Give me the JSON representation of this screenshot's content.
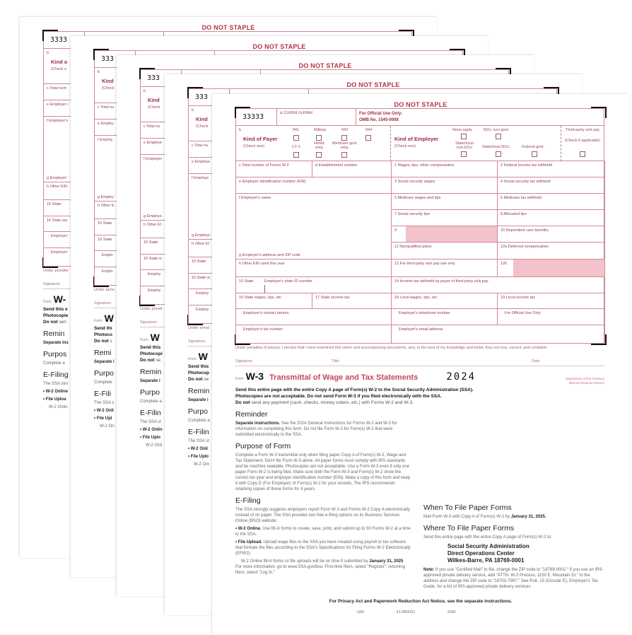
{
  "form": {
    "do_not_staple": "DO NOT STAPLE",
    "control_code": "33333",
    "control_label": "a Control number",
    "official_use": "For Official Use Only:",
    "omb": "OMB No. 1545-0008",
    "b": "b",
    "kind_of_payer": "Kind of Payer",
    "check_one": "(Check one)",
    "payer_options": [
      "941",
      "Military",
      "943",
      "944",
      "CT-1",
      "Hshld. emp.",
      "Medicare govt. emp."
    ],
    "kind_of_employer": "Kind of Employer",
    "employer_options": [
      "None apply",
      "501c non-govt.",
      "State/local non-501c",
      "State/local 501c",
      "Federal govt."
    ],
    "third_party": "Third-party sick pay",
    "check_if": "(Check if applicable)",
    "boxes": {
      "c": "c Total number of Forms W-2",
      "d": "d Establishment number",
      "b1": "1 Wages, tips, other compensation",
      "b2": "2 Federal income tax withheld",
      "e": "e Employer identification number (EIN)",
      "b3": "3 Social security wages",
      "b4": "4 Social security tax withheld",
      "f": "f Employer's name",
      "b5": "5 Medicare wages and tips",
      "b6": "6 Medicare tax withheld",
      "b7": "7 Social security tips",
      "b8": "8 Allocated tips",
      "b9": "9",
      "b10": "10 Dependent care benefits",
      "b11": "11 Nonqualified plans",
      "b12a": "12a Deferred compensation",
      "g": "g Employer's address and ZIP code",
      "h": "h Other EIN used this year",
      "b13": "13 For third-party sick pay use only",
      "b12b": "12b",
      "b15": "15 State",
      "state_id": "Employer's state ID number",
      "b14": "14 Income tax withheld by payer of third-party sick pay",
      "b16": "16 State wages, tips, etc.",
      "b17": "17 State income tax",
      "b18": "18 Local wages, tips, etc.",
      "b19": "19 Local income tax",
      "contact": "Employer's contact person",
      "phone": "Employer's telephone number",
      "official": "For Official Use Only",
      "fax": "Employer's fax number",
      "email": "Employer's email address"
    },
    "perjury": "Under penalties of perjury, I declare that I have examined this return and accompanying documents, and, to the best of my knowledge and belief, they are true, correct, and complete.",
    "signature": "Signature:",
    "title_lbl": "Title:",
    "date_lbl": "Date:"
  },
  "header": {
    "form_word": "Form",
    "form_name": "W-3",
    "title": "Transmittal of Wage and Tax Statements",
    "year": "2024",
    "dept1": "Department of the Treasury",
    "dept2": "Internal Revenue Service"
  },
  "send": {
    "line1": "Send this entire page with the entire Copy A page of Form(s) W-2 to the Social Security Administration (SSA).",
    "line2": "Photocopies are not acceptable. Do not send Form W-3 if you filed electronically with the SSA.",
    "line3_bold": "Do not",
    "line3": " send any payment (cash, checks, money orders, etc.) with Forms W-2 and W-3."
  },
  "reminder": {
    "heading": "Reminder",
    "bold": "Separate instructions.",
    "text": " See the 2024 General Instructions for Forms W-2 and W-3 for information on completing this form. Do not file Form W-3 for Form(s) W-2 that were submitted electronically to the SSA."
  },
  "purpose": {
    "heading": "Purpose of Form",
    "text": "Complete a Form W-3 transmittal only when filing paper Copy A of Form(s) W-2, Wage and Tax Statement. Don't file Form W-3 alone. All paper forms must comply with IRS standards and be machine readable. Photocopies are not acceptable. Use a Form W-3 even if only one paper Form W-2 is being filed. Make sure both the Form W-3 and Form(s) W-2 show the correct tax year and employer identification number (EIN). Make a copy of this form and keep it with Copy D (For Employer) of Form(s) W-2 for your records. The IRS recommends retaining copies of these forms for 4 years."
  },
  "efiling": {
    "heading": "E-Filing",
    "intro": "The SSA strongly suggests employers report Form W-3 and Forms W-2 Copy A electronically instead of on paper. The SSA provides two free e-filing options on its Business Services Online (BSO) website.",
    "w2_bold": "• W-2 Online.",
    "w2_text": " Use fill-in forms to create, save, print, and submit up to 50 Forms W-2 at a time to the SSA.",
    "upload_bold": "• File Upload.",
    "upload_text": " Upload wage files to the SSA you have created using payroll or tax software that formats the files according to the SSA's Specifications for Filing Forms W-2 Electronically (EFW2).",
    "ontime": "W-2 Online fill-in forms or file uploads will be on time if submitted by",
    "ontime_date": "January 31, 2025",
    "ontime_rest": ". For more information, go to www.SSA.gov/bso. First-time filers, select \"Register\"; returning filers, select \"Log In.\""
  },
  "when": {
    "heading": "When To File Paper Forms",
    "text": "Mail Form W-3 with Copy A of Form(s) W-2 by",
    "date": "January 31, 2025."
  },
  "where": {
    "heading": "Where To File Paper Forms",
    "text": "Send this entire page with the entire Copy A page of Form(s) W-2 to:",
    "address": [
      "Social Security Administration",
      "Direct Operations Center",
      "Wilkes-Barre, PA 18769-0001"
    ],
    "note_bold": "Note:",
    "note": " If you use \"Certified Mail\" to file, change the ZIP code to \"18769-0002.\" If you use an IRS-approved private delivery service, add \"ATTN: W-2 Process, 1150 E. Mountain Dr.\" to the address and change the ZIP code to \"18702-7997.\" See Pub. 15 (Circular E), Employer's Tax Guide, for a list of IRS-approved private delivery services."
  },
  "footer": {
    "privacy": "For Privacy Act and Paperwork Reduction Act Notice, see the separate instructions.",
    "codes": [
      "LW3",
      "41-0852411",
      "5200"
    ]
  },
  "colors": {
    "form_red": "#b5334a",
    "shade_pink": "#f3c2cb",
    "rule_pink": "#cf8a97"
  }
}
